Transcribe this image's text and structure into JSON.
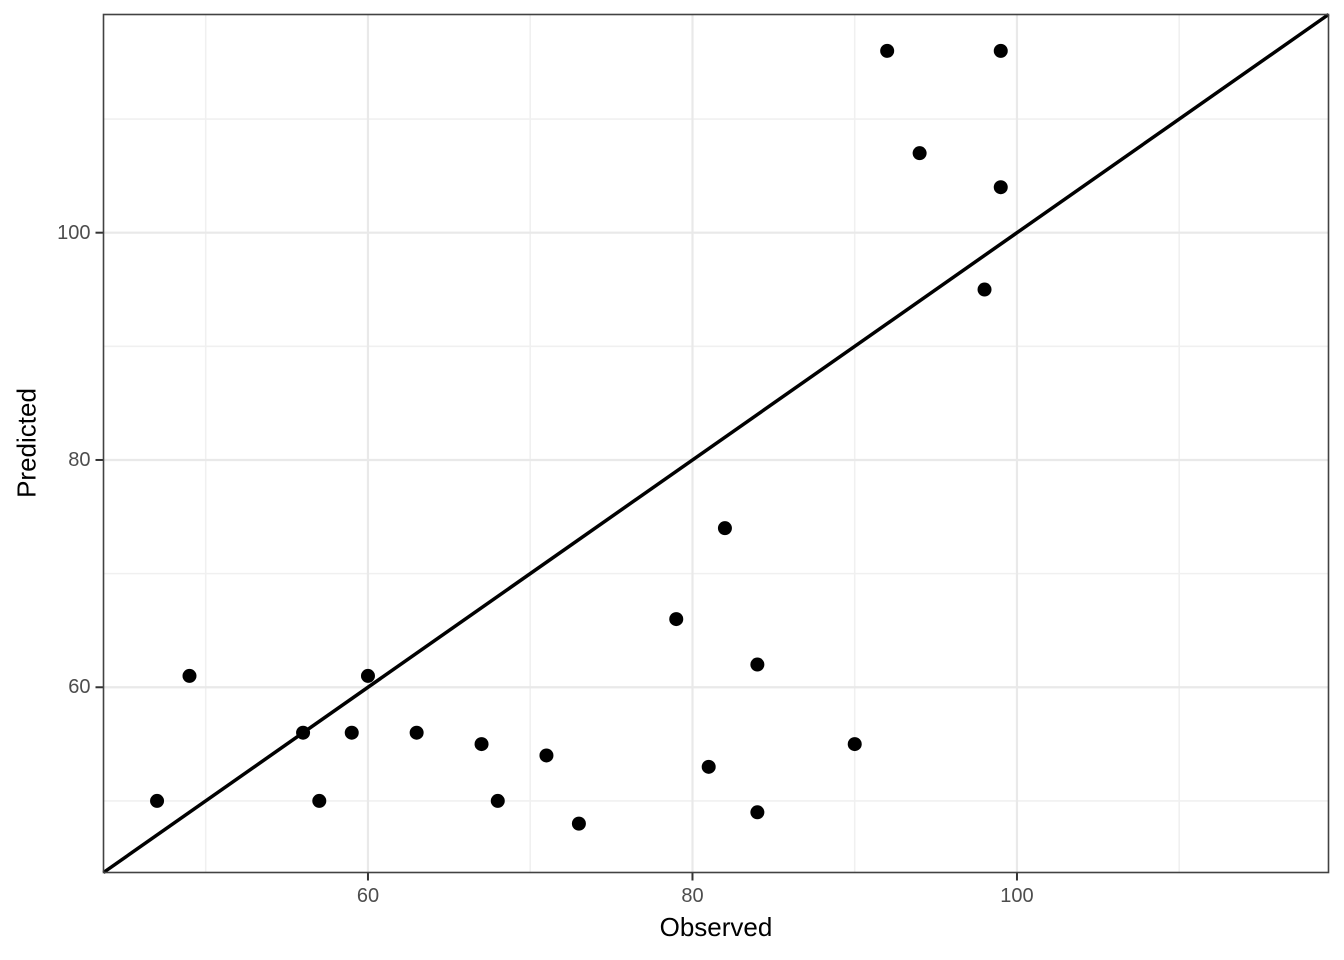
{
  "chart_data": {
    "type": "scatter",
    "title": "",
    "xlabel": "Observed",
    "ylabel": "Predicted",
    "xlim": [
      43.7,
      119.2
    ],
    "ylim": [
      43.7,
      119.2
    ],
    "x_ticks": [
      60,
      80,
      100
    ],
    "y_ticks": [
      60,
      80,
      100
    ],
    "x_minor_ticks": [
      50,
      70,
      90,
      110
    ],
    "y_minor_ticks": [
      50,
      70,
      90,
      110
    ],
    "grid": "major-and-minor",
    "legend_position": "none",
    "reference_line": {
      "type": "identity",
      "slope": 1,
      "intercept": 0
    },
    "points": [
      {
        "observed": 47,
        "predicted": 50
      },
      {
        "observed": 49,
        "predicted": 61
      },
      {
        "observed": 56,
        "predicted": 56
      },
      {
        "observed": 57,
        "predicted": 50
      },
      {
        "observed": 59,
        "predicted": 56
      },
      {
        "observed": 60,
        "predicted": 61
      },
      {
        "observed": 63,
        "predicted": 56
      },
      {
        "observed": 67,
        "predicted": 55
      },
      {
        "observed": 68,
        "predicted": 50
      },
      {
        "observed": 71,
        "predicted": 54
      },
      {
        "observed": 73,
        "predicted": 48
      },
      {
        "observed": 79,
        "predicted": 66
      },
      {
        "observed": 81,
        "predicted": 53
      },
      {
        "observed": 82,
        "predicted": 74
      },
      {
        "observed": 84,
        "predicted": 49
      },
      {
        "observed": 84,
        "predicted": 62
      },
      {
        "observed": 90,
        "predicted": 55
      },
      {
        "observed": 92,
        "predicted": 116
      },
      {
        "observed": 94,
        "predicted": 107
      },
      {
        "observed": 98,
        "predicted": 95
      },
      {
        "observed": 99,
        "predicted": 104
      },
      {
        "observed": 99,
        "predicted": 116
      }
    ],
    "style": {
      "point_color": "#000000",
      "reference_line_color": "#000000",
      "grid_major_color": "#e9e9e9",
      "grid_minor_color": "#f0f0f0",
      "panel_border_color": "#424242",
      "tick_mark_color": "#333333",
      "tick_label_color": "#4d4d4d",
      "axis_title_color": "#000000",
      "panel_background": "#ffffff"
    }
  }
}
